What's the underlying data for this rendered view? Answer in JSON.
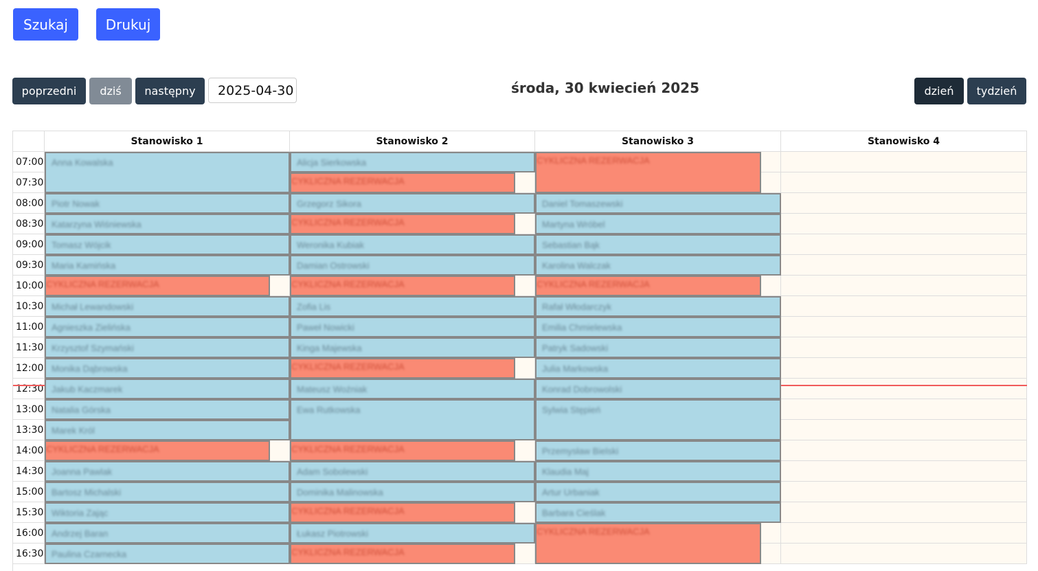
{
  "toolbar": {
    "search_label": "Szukaj",
    "print_label": "Drukuj"
  },
  "nav": {
    "prev_label": "poprzedni",
    "today_label": "dziś",
    "next_label": "następny",
    "date_value": "2025-04-30",
    "title": "środa, 30 kwiecień 2025",
    "view_day_label": "dzień",
    "view_week_label": "tydzień"
  },
  "colors": {
    "reservation": "#add8e6",
    "cyclic": "#fa8a74",
    "now_line": "#f05a5a",
    "accent": "#3a62ff"
  },
  "columns": [
    "Stanowisko 1",
    "Stanowisko 2",
    "Stanowisko 3",
    "Stanowisko 4"
  ],
  "times": [
    "07:00",
    "07:30",
    "08:00",
    "08:30",
    "09:00",
    "09:30",
    "10:00",
    "10:30",
    "11:00",
    "11:30",
    "12:00",
    "12:30",
    "13:00",
    "13:30",
    "14:00",
    "14:30",
    "15:00",
    "15:30",
    "16:00",
    "16:30"
  ],
  "current_time": "12:39",
  "events": [
    [
      {
        "start": "07:00",
        "end": "08:00",
        "label": "Anna Kowalska",
        "type": "reservation"
      },
      {
        "start": "08:00",
        "end": "08:30",
        "label": "Piotr Nowak",
        "type": "reservation"
      },
      {
        "start": "08:30",
        "end": "09:00",
        "label": "Katarzyna Wiśniewska",
        "type": "reservation"
      },
      {
        "start": "09:00",
        "end": "09:30",
        "label": "Tomasz Wójcik",
        "type": "reservation"
      },
      {
        "start": "09:30",
        "end": "10:00",
        "label": "Maria Kamińska",
        "type": "reservation"
      },
      {
        "start": "10:00",
        "end": "10:30",
        "label": "CYKLICZNA REZERWACJA",
        "type": "cyclic"
      },
      {
        "start": "10:30",
        "end": "11:00",
        "label": "Michał Lewandowski",
        "type": "reservation"
      },
      {
        "start": "11:00",
        "end": "11:30",
        "label": "Agnieszka Zielińska",
        "type": "reservation"
      },
      {
        "start": "11:30",
        "end": "12:00",
        "label": "Krzysztof Szymański",
        "type": "reservation"
      },
      {
        "start": "12:00",
        "end": "12:30",
        "label": "Monika Dąbrowska",
        "type": "reservation"
      },
      {
        "start": "12:30",
        "end": "13:00",
        "label": "Jakub Kaczmarek",
        "type": "reservation"
      },
      {
        "start": "13:00",
        "end": "13:30",
        "label": "Natalia Górska",
        "type": "reservation"
      },
      {
        "start": "13:30",
        "end": "14:00",
        "label": "Marek Król",
        "type": "reservation"
      },
      {
        "start": "14:00",
        "end": "14:30",
        "label": "CYKLICZNA REZERWACJA",
        "type": "cyclic"
      },
      {
        "start": "14:30",
        "end": "15:00",
        "label": "Joanna Pawlak",
        "type": "reservation"
      },
      {
        "start": "15:00",
        "end": "15:30",
        "label": "Bartosz Michalski",
        "type": "reservation"
      },
      {
        "start": "15:30",
        "end": "16:00",
        "label": "Wiktoria Zając",
        "type": "reservation"
      },
      {
        "start": "16:00",
        "end": "16:30",
        "label": "Andrzej Baran",
        "type": "reservation"
      },
      {
        "start": "16:30",
        "end": "17:00",
        "label": "Paulina Czarnecka",
        "type": "reservation"
      }
    ],
    [
      {
        "start": "07:00",
        "end": "07:30",
        "label": "Alicja Sierkowska",
        "type": "reservation"
      },
      {
        "start": "07:30",
        "end": "08:00",
        "label": "CYKLICZNA REZERWACJA",
        "type": "cyclic"
      },
      {
        "start": "08:00",
        "end": "08:30",
        "label": "Grzegorz Sikora",
        "type": "reservation"
      },
      {
        "start": "08:30",
        "end": "09:00",
        "label": "CYKLICZNA REZERWACJA",
        "type": "cyclic"
      },
      {
        "start": "09:00",
        "end": "09:30",
        "label": "Weronika Kubiak",
        "type": "reservation"
      },
      {
        "start": "09:30",
        "end": "10:00",
        "label": "Damian Ostrowski",
        "type": "reservation"
      },
      {
        "start": "10:00",
        "end": "10:30",
        "label": "CYKLICZNA REZERWACJA",
        "type": "cyclic"
      },
      {
        "start": "10:30",
        "end": "11:00",
        "label": "Zofia Lis",
        "type": "reservation"
      },
      {
        "start": "11:00",
        "end": "11:30",
        "label": "Paweł Nowicki",
        "type": "reservation"
      },
      {
        "start": "11:30",
        "end": "12:00",
        "label": "Kinga Majewska",
        "type": "reservation"
      },
      {
        "start": "12:00",
        "end": "12:30",
        "label": "CYKLICZNA REZERWACJA",
        "type": "cyclic"
      },
      {
        "start": "12:30",
        "end": "13:00",
        "label": "Mateusz Woźniak",
        "type": "reservation"
      },
      {
        "start": "13:00",
        "end": "14:00",
        "label": "Ewa Rutkowska",
        "type": "reservation"
      },
      {
        "start": "14:00",
        "end": "14:30",
        "label": "CYKLICZNA REZERWACJA",
        "type": "cyclic"
      },
      {
        "start": "14:30",
        "end": "15:00",
        "label": "Adam Sobolewski",
        "type": "reservation"
      },
      {
        "start": "15:00",
        "end": "15:30",
        "label": "Dominika Malinowska",
        "type": "reservation"
      },
      {
        "start": "15:30",
        "end": "16:00",
        "label": "CYKLICZNA REZERWACJA",
        "type": "cyclic"
      },
      {
        "start": "16:00",
        "end": "16:30",
        "label": "Łukasz Piotrowski",
        "type": "reservation"
      },
      {
        "start": "16:30",
        "end": "17:00",
        "label": "CYKLICZNA REZERWACJA",
        "type": "cyclic"
      }
    ],
    [
      {
        "start": "07:00",
        "end": "08:00",
        "label": "CYKLICZNA REZERWACJA",
        "type": "cyclic"
      },
      {
        "start": "08:00",
        "end": "08:30",
        "label": "Daniel Tomaszewski",
        "type": "reservation"
      },
      {
        "start": "08:30",
        "end": "09:00",
        "label": "Martyna Wróbel",
        "type": "reservation"
      },
      {
        "start": "09:00",
        "end": "09:30",
        "label": "Sebastian Bąk",
        "type": "reservation"
      },
      {
        "start": "09:30",
        "end": "10:00",
        "label": "Karolina Walczak",
        "type": "reservation"
      },
      {
        "start": "10:00",
        "end": "10:30",
        "label": "CYKLICZNA REZERWACJA",
        "type": "cyclic"
      },
      {
        "start": "10:30",
        "end": "11:00",
        "label": "Rafał Włodarczyk",
        "type": "reservation"
      },
      {
        "start": "11:00",
        "end": "11:30",
        "label": "Emilia Chmielewska",
        "type": "reservation"
      },
      {
        "start": "11:30",
        "end": "12:00",
        "label": "Patryk Sadowski",
        "type": "reservation"
      },
      {
        "start": "12:00",
        "end": "12:30",
        "label": "Julia Markowska",
        "type": "reservation"
      },
      {
        "start": "12:30",
        "end": "13:00",
        "label": "Konrad Dobrowolski",
        "type": "reservation"
      },
      {
        "start": "13:00",
        "end": "14:00",
        "label": "Sylwia Stępień",
        "type": "reservation"
      },
      {
        "start": "14:00",
        "end": "14:30",
        "label": "Przemysław Bielski",
        "type": "reservation"
      },
      {
        "start": "14:30",
        "end": "15:00",
        "label": "Klaudia Maj",
        "type": "reservation"
      },
      {
        "start": "15:00",
        "end": "15:30",
        "label": "Artur Urbaniak",
        "type": "reservation"
      },
      {
        "start": "15:30",
        "end": "16:00",
        "label": "Barbara Cieślak",
        "type": "reservation"
      },
      {
        "start": "16:00",
        "end": "17:00",
        "label": "CYKLICZNA REZERWACJA",
        "type": "cyclic"
      }
    ],
    []
  ]
}
